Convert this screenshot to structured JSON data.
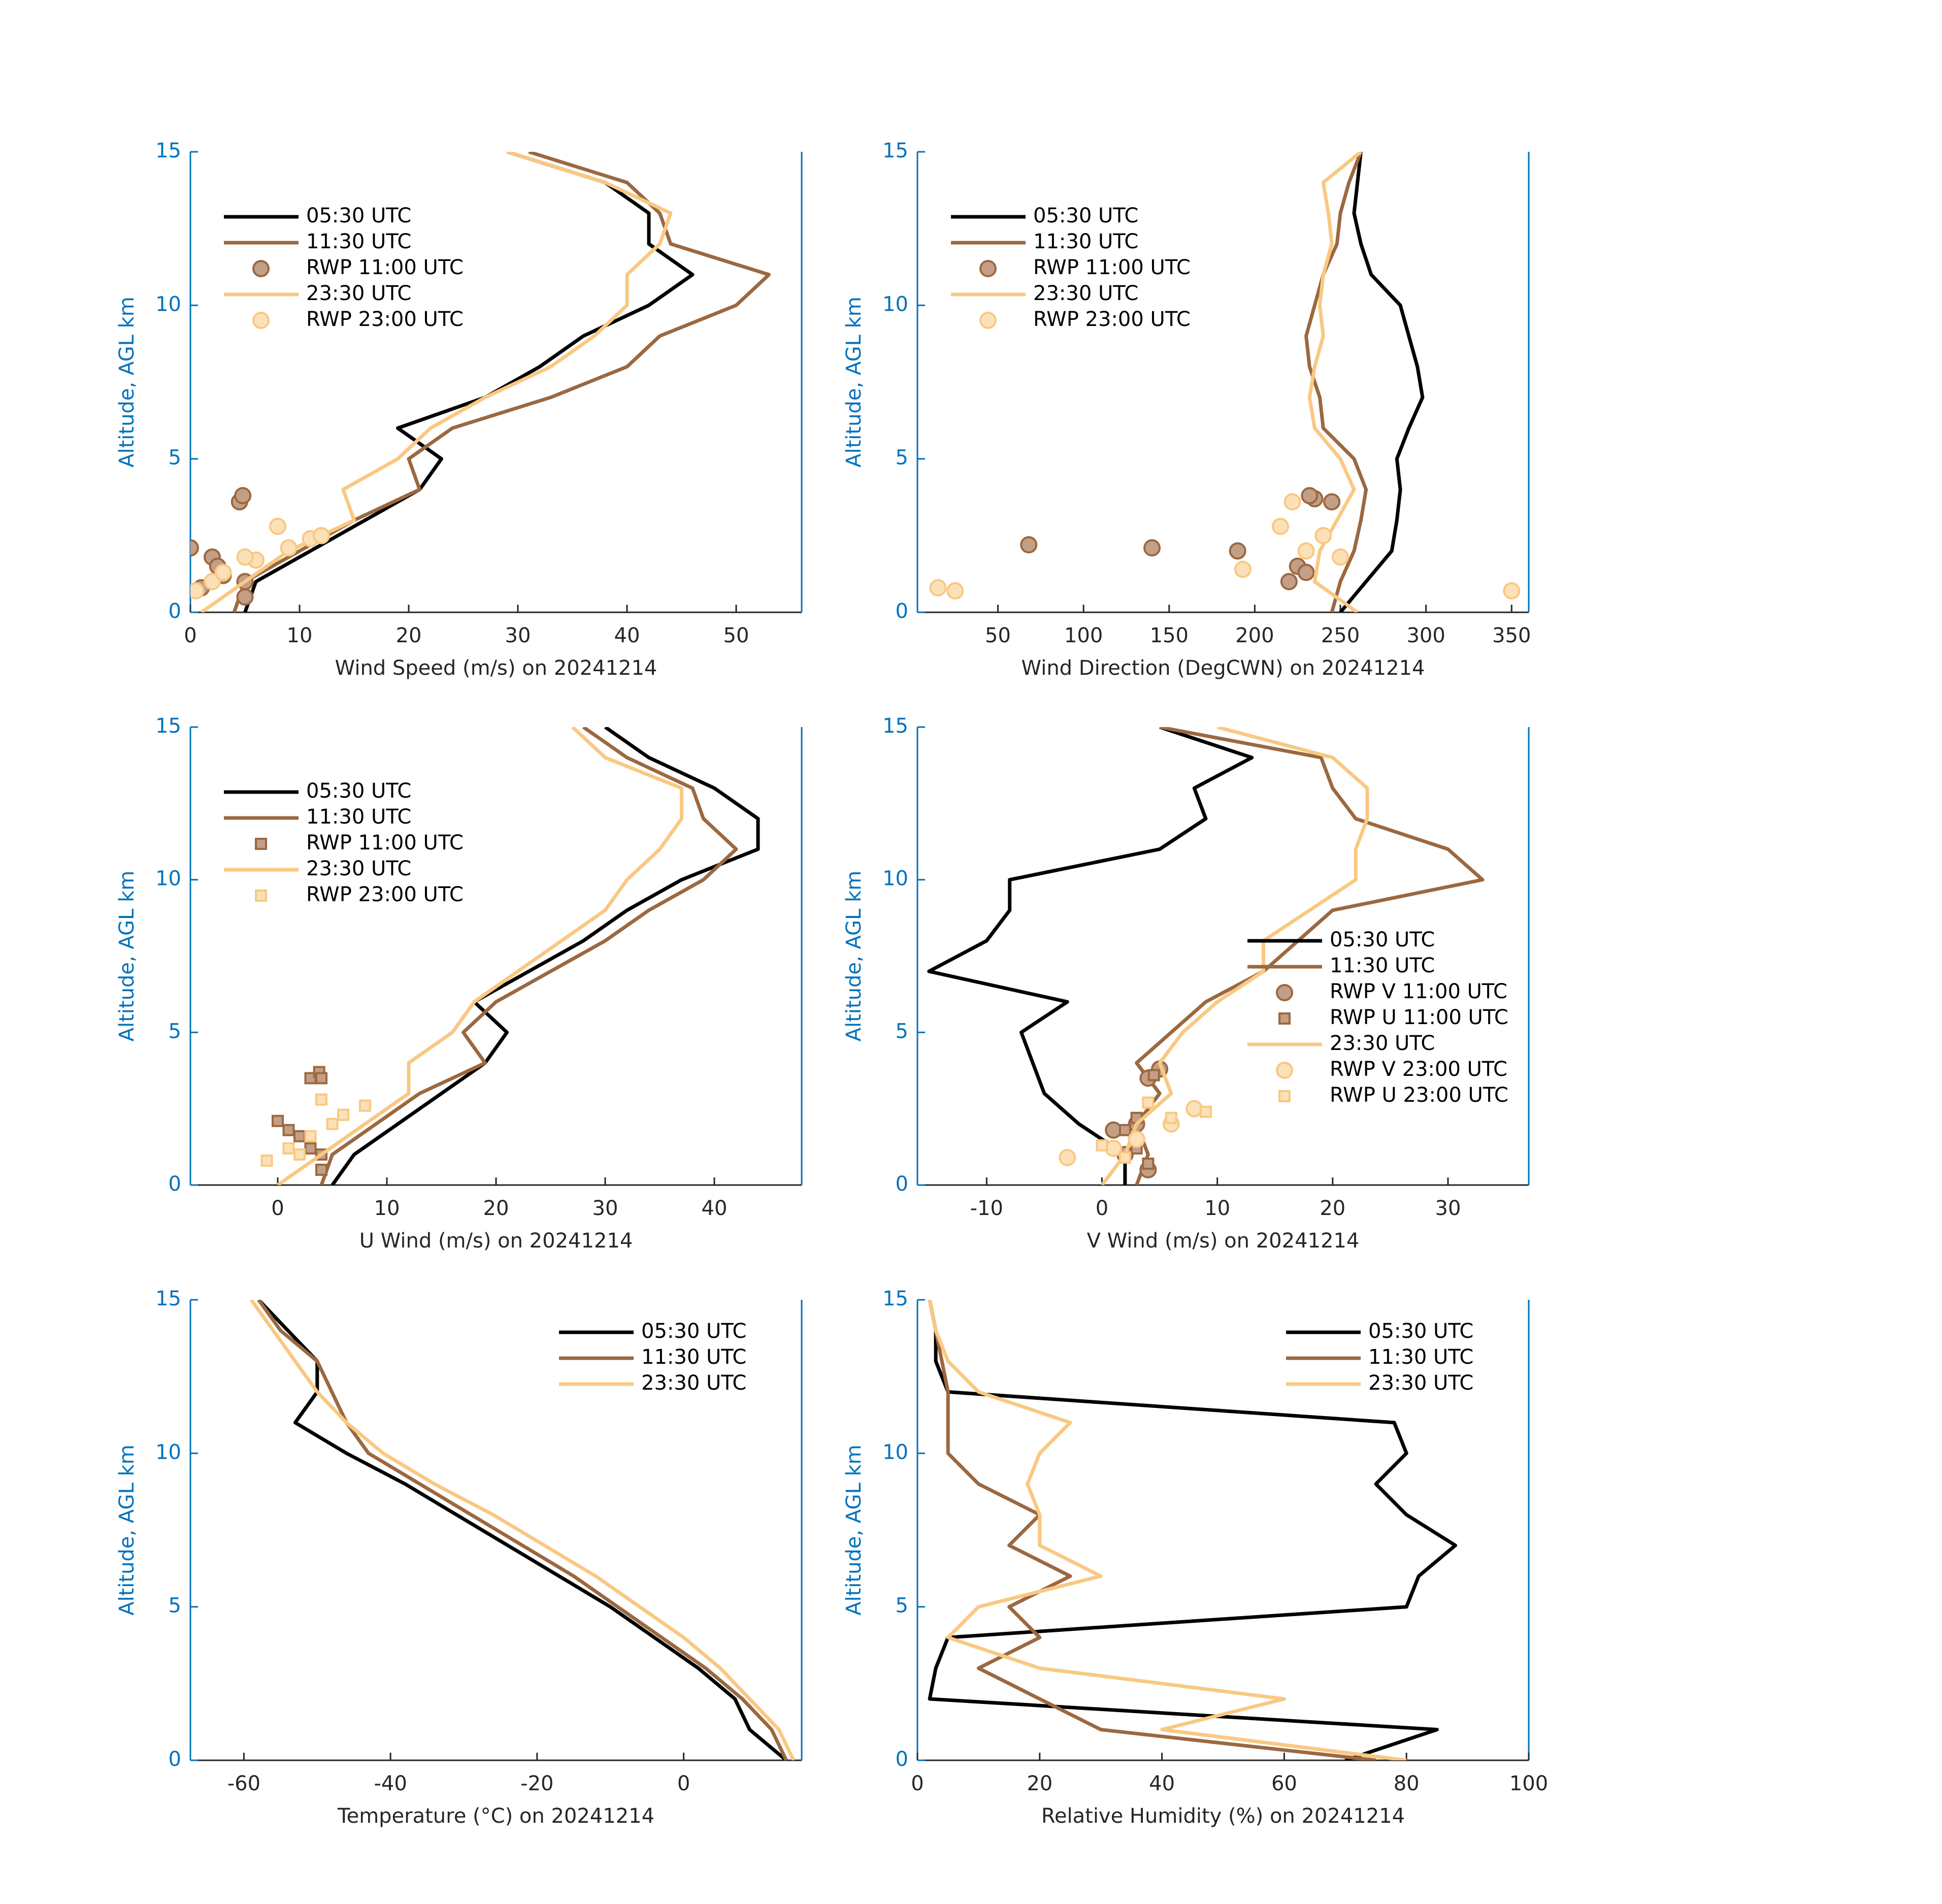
{
  "chart_data": [
    {
      "type": "line",
      "xlabel": "Wind Speed (m/s) on 20241214",
      "ylabel": "Altitude, AGL km",
      "xlim": [
        0,
        56
      ],
      "ylim": [
        0,
        15
      ],
      "xticks": [
        0,
        10,
        20,
        30,
        40,
        50
      ],
      "yticks": [
        0,
        5,
        10,
        15
      ],
      "legend": "upper left",
      "series": [
        {
          "name": "05:30 UTC",
          "type": "line",
          "color": "#000000",
          "x": [
            5,
            6,
            11,
            16,
            21,
            23,
            19,
            27,
            32,
            36,
            42,
            46,
            42,
            42,
            38,
            29
          ],
          "y": [
            0,
            1,
            2,
            3,
            4,
            5,
            6,
            7,
            8,
            9,
            10,
            11,
            12,
            13,
            14,
            15
          ]
        },
        {
          "name": "11:30 UTC",
          "type": "line",
          "color": "#9b6840",
          "x": [
            4,
            5,
            10,
            15,
            21,
            20,
            24,
            33,
            40,
            43,
            50,
            53,
            44,
            43,
            40,
            31
          ],
          "y": [
            0,
            1,
            2,
            3,
            4,
            5,
            6,
            7,
            8,
            9,
            10,
            11,
            12,
            13,
            14,
            15
          ]
        },
        {
          "name": "RWP 11:00 UTC",
          "type": "scatter",
          "marker": "circle",
          "color": "#9b6840",
          "fill": "#c39f86",
          "x": [
            0,
            2,
            2.5,
            5,
            5,
            4.5,
            4.8,
            3,
            1
          ],
          "y": [
            2.1,
            1.8,
            1.5,
            0.5,
            1,
            3.6,
            3.8,
            1.2,
            0.8
          ]
        },
        {
          "name": "23:30 UTC",
          "type": "line",
          "color": "#f9c882",
          "x": [
            1,
            5,
            9,
            15,
            14,
            19,
            22,
            27,
            33,
            37,
            40,
            40,
            43,
            44,
            38,
            29
          ],
          "y": [
            0,
            1,
            2,
            3,
            4,
            5,
            6,
            7,
            8,
            9,
            10,
            11,
            12,
            13,
            14,
            15
          ]
        },
        {
          "name": "RWP 23:00 UTC",
          "type": "scatter",
          "marker": "circle",
          "color": "#f9c882",
          "fill": "#fce1b8",
          "x": [
            0.5,
            2,
            3,
            6,
            8,
            11,
            12,
            9,
            5
          ],
          "y": [
            0.7,
            1,
            1.3,
            1.7,
            2.8,
            2.4,
            2.5,
            2.1,
            1.8
          ]
        }
      ]
    },
    {
      "type": "line",
      "xlabel": "Wind Direction (DegCWN) on 20241214",
      "ylabel": "Altitude, AGL km",
      "xlim": [
        3,
        360
      ],
      "ylim": [
        0,
        15
      ],
      "xticks": [
        50,
        100,
        150,
        200,
        250,
        300,
        350
      ],
      "yticks": [
        0,
        5,
        10,
        15
      ],
      "legend": "upper left",
      "series": [
        {
          "name": "05:30 UTC",
          "type": "line",
          "color": "#000000",
          "x": [
            250,
            265,
            280,
            283,
            285,
            283,
            290,
            298,
            295,
            290,
            285,
            268,
            262,
            258,
            260,
            262
          ],
          "y": [
            0,
            1,
            2,
            3,
            4,
            5,
            6,
            7,
            8,
            9,
            10,
            11,
            12,
            13,
            14,
            15
          ]
        },
        {
          "name": "11:30 UTC",
          "type": "line",
          "color": "#9b6840",
          "x": [
            245,
            250,
            258,
            262,
            265,
            258,
            240,
            238,
            232,
            230,
            235,
            240,
            248,
            250,
            255,
            262
          ],
          "y": [
            0,
            1,
            2,
            3,
            4,
            5,
            6,
            7,
            8,
            9,
            10,
            11,
            12,
            13,
            14,
            15
          ]
        },
        {
          "name": "RWP 11:00 UTC",
          "type": "scatter",
          "marker": "circle",
          "color": "#9b6840",
          "fill": "#c39f86",
          "x": [
            68,
            140,
            190,
            225,
            235,
            232,
            245,
            220,
            230
          ],
          "y": [
            2.2,
            2.1,
            2,
            1.5,
            3.7,
            3.8,
            3.6,
            1,
            1.3
          ]
        },
        {
          "name": "23:30 UTC",
          "type": "line",
          "color": "#f9c882",
          "x": [
            260,
            235,
            238,
            248,
            258,
            250,
            235,
            232,
            235,
            240,
            238,
            240,
            245,
            243,
            240,
            262
          ],
          "y": [
            0,
            1,
            2,
            3,
            4,
            5,
            6,
            7,
            8,
            9,
            10,
            11,
            12,
            13,
            14,
            15
          ]
        },
        {
          "name": "RWP 23:00 UTC",
          "type": "scatter",
          "marker": "circle",
          "color": "#f9c882",
          "fill": "#fce1b8",
          "x": [
            15,
            25,
            193,
            222,
            215,
            240,
            230,
            250,
            350
          ],
          "y": [
            0.8,
            0.7,
            1.4,
            3.6,
            2.8,
            2.5,
            2,
            1.8,
            0.7
          ]
        }
      ]
    },
    {
      "type": "line",
      "xlabel": "U Wind (m/s) on 20241214",
      "ylabel": "Altitude, AGL km",
      "xlim": [
        -8,
        48
      ],
      "ylim": [
        0,
        15
      ],
      "xticks": [
        0,
        10,
        20,
        30,
        40
      ],
      "yticks": [
        0,
        5,
        10,
        15
      ],
      "legend": "upper left",
      "series": [
        {
          "name": "05:30 UTC",
          "type": "line",
          "color": "#000000",
          "x": [
            5,
            7,
            11,
            15,
            19,
            21,
            18,
            23,
            28,
            32,
            37,
            44,
            44,
            40,
            34,
            30
          ],
          "y": [
            0,
            1,
            2,
            3,
            4,
            5,
            6,
            7,
            8,
            9,
            10,
            11,
            12,
            13,
            14,
            15
          ]
        },
        {
          "name": "11:30 UTC",
          "type": "line",
          "color": "#9b6840",
          "x": [
            4,
            5,
            9,
            13,
            19,
            17,
            20,
            25,
            30,
            34,
            39,
            42,
            39,
            38,
            32,
            28
          ],
          "y": [
            0,
            1,
            2,
            3,
            4,
            5,
            6,
            7,
            8,
            9,
            10,
            11,
            12,
            13,
            14,
            15
          ]
        },
        {
          "name": "RWP 11:00 UTC",
          "type": "scatter",
          "marker": "square",
          "color": "#9b6840",
          "fill": "#c39f86",
          "x": [
            0,
            1,
            2,
            3,
            4,
            4,
            3,
            3.8,
            4
          ],
          "y": [
            2.1,
            1.8,
            1.6,
            1.2,
            1,
            0.5,
            3.5,
            3.7,
            3.5
          ]
        },
        {
          "name": "23:30 UTC",
          "type": "line",
          "color": "#f9c882",
          "x": [
            0,
            4,
            8,
            12,
            12,
            16,
            18,
            22,
            26,
            30,
            32,
            35,
            37,
            37,
            30,
            27
          ],
          "y": [
            0,
            1,
            2,
            3,
            4,
            5,
            6,
            7,
            8,
            9,
            10,
            11,
            12,
            13,
            14,
            15
          ]
        },
        {
          "name": "RWP 23:00 UTC",
          "type": "scatter",
          "marker": "square",
          "color": "#f9c882",
          "fill": "#fce1b8",
          "x": [
            -1,
            1,
            3,
            5,
            6,
            8,
            4,
            2
          ],
          "y": [
            0.8,
            1.2,
            1.6,
            2,
            2.3,
            2.6,
            2.8,
            1
          ]
        }
      ]
    },
    {
      "type": "line",
      "xlabel": "V Wind (m/s) on 20241214",
      "ylabel": "Altitude, AGL km",
      "xlim": [
        -16,
        37
      ],
      "ylim": [
        0,
        15
      ],
      "xticks": [
        -10,
        0,
        10,
        20,
        30
      ],
      "yticks": [
        0,
        5,
        10,
        15
      ],
      "legend": "center right",
      "series": [
        {
          "name": "05:30 UTC",
          "type": "line",
          "color": "#000000",
          "x": [
            2,
            2,
            -2,
            -5,
            -6,
            -7,
            -3,
            -15,
            -10,
            -8,
            -8,
            5,
            9,
            8,
            13,
            5
          ],
          "y": [
            0,
            1,
            2,
            3,
            4,
            5,
            6,
            7,
            8,
            9,
            10,
            11,
            12,
            13,
            14,
            15
          ]
        },
        {
          "name": "11:30 UTC",
          "type": "line",
          "color": "#9b6840",
          "x": [
            3,
            4,
            3,
            5,
            3,
            6,
            9,
            14,
            17,
            20,
            33,
            30,
            22,
            20,
            19,
            5
          ],
          "y": [
            0,
            1,
            2,
            3,
            4,
            5,
            6,
            7,
            8,
            9,
            10,
            11,
            12,
            13,
            14,
            15
          ]
        },
        {
          "name": "RWP V 11:00 UTC",
          "type": "scatter",
          "marker": "circle",
          "color": "#9b6840",
          "fill": "#c39f86",
          "x": [
            3,
            2,
            4,
            4,
            5,
            3,
            1
          ],
          "y": [
            1.5,
            1,
            0.5,
            3.5,
            3.8,
            2,
            1.8
          ]
        },
        {
          "name": "RWP U 11:00 UTC",
          "type": "scatter",
          "marker": "square",
          "color": "#9b6840",
          "fill": "#c39f86",
          "x": [
            3,
            4,
            4.5,
            3,
            2
          ],
          "y": [
            1.2,
            0.7,
            3.6,
            2.2,
            1.8
          ]
        },
        {
          "name": "23:30 UTC",
          "type": "line",
          "color": "#f9c882",
          "x": [
            0,
            2,
            3,
            6,
            5,
            7,
            10,
            14,
            14,
            18,
            22,
            22,
            23,
            23,
            20,
            10
          ],
          "y": [
            0,
            1,
            2,
            3,
            4,
            5,
            6,
            7,
            8,
            9,
            10,
            11,
            12,
            13,
            14,
            15
          ]
        },
        {
          "name": "RWP V 23:00 UTC",
          "type": "scatter",
          "marker": "circle",
          "color": "#f9c882",
          "fill": "#fce1b8",
          "x": [
            -3,
            1,
            6,
            8,
            3
          ],
          "y": [
            0.9,
            1.2,
            2,
            2.5,
            1.5
          ]
        },
        {
          "name": "RWP U 23:00 UTC",
          "type": "scatter",
          "marker": "square",
          "color": "#f9c882",
          "fill": "#fce1b8",
          "x": [
            4,
            9,
            6,
            2,
            0
          ],
          "y": [
            2.7,
            2.4,
            2.2,
            0.9,
            1.3
          ]
        }
      ]
    },
    {
      "type": "line",
      "xlabel": "Temperature (°C) on 20241214",
      "ylabel": "Altitude, AGL km",
      "xlim": [
        -67.3,
        16.1
      ],
      "ylim": [
        0,
        15
      ],
      "xticks": [
        -60,
        -40,
        -20,
        0
      ],
      "yticks": [
        0,
        5,
        10,
        15
      ],
      "legend": "upper right",
      "series": [
        {
          "name": "05:30 UTC",
          "type": "line",
          "color": "#000000",
          "x": [
            14,
            9,
            7,
            2,
            -4,
            -10,
            -17,
            -24,
            -31,
            -38,
            -46,
            -53,
            -50,
            -50,
            -54,
            -58
          ],
          "y": [
            0,
            1,
            2,
            3,
            4,
            5,
            6,
            7,
            8,
            9,
            10,
            11,
            12,
            13,
            14,
            15
          ]
        },
        {
          "name": "11:30 UTC",
          "type": "line",
          "color": "#9b6840",
          "x": [
            14,
            12,
            8,
            3,
            -3,
            -9,
            -15,
            -22,
            -29,
            -36,
            -43,
            -46,
            -48,
            -50,
            -55,
            -58
          ],
          "y": [
            0,
            1,
            2,
            3,
            4,
            5,
            6,
            7,
            8,
            9,
            10,
            11,
            12,
            13,
            14,
            15
          ]
        },
        {
          "name": "23:30 UTC",
          "type": "line",
          "color": "#f9c882",
          "x": [
            15,
            13,
            9,
            5,
            0,
            -6,
            -12,
            -19,
            -26,
            -34,
            -41,
            -46,
            -50,
            -53,
            -56,
            -59
          ],
          "y": [
            0,
            1,
            2,
            3,
            4,
            5,
            6,
            7,
            8,
            9,
            10,
            11,
            12,
            13,
            14,
            15
          ]
        }
      ]
    },
    {
      "type": "line",
      "xlabel": "Relative Humidity (%) on 20241214",
      "ylabel": "Altitude, AGL km",
      "xlim": [
        0,
        100
      ],
      "ylim": [
        0,
        15
      ],
      "xticks": [
        0,
        20,
        40,
        60,
        80,
        100
      ],
      "yticks": [
        0,
        5,
        10,
        15
      ],
      "legend": "upper right",
      "series": [
        {
          "name": "05:30 UTC",
          "type": "line",
          "color": "#000000",
          "x": [
            70,
            85,
            2,
            3,
            5,
            80,
            82,
            88,
            80,
            75,
            80,
            78,
            5,
            3,
            3,
            2
          ],
          "y": [
            0,
            1,
            2,
            3,
            4,
            5,
            6,
            7,
            8,
            9,
            10,
            11,
            12,
            13,
            14,
            15
          ]
        },
        {
          "name": "11:30 UTC",
          "type": "line",
          "color": "#9b6840",
          "x": [
            75,
            30,
            20,
            10,
            20,
            15,
            25,
            15,
            20,
            10,
            5,
            5,
            5,
            4,
            3,
            2
          ],
          "y": [
            0,
            1,
            2,
            3,
            4,
            5,
            6,
            7,
            8,
            9,
            10,
            11,
            12,
            13,
            14,
            15
          ]
        },
        {
          "name": "23:30 UTC",
          "type": "line",
          "color": "#f9c882",
          "x": [
            80,
            40,
            60,
            20,
            5,
            10,
            30,
            20,
            20,
            18,
            20,
            25,
            10,
            5,
            3,
            2
          ],
          "y": [
            0,
            1,
            2,
            3,
            4,
            5,
            6,
            7,
            8,
            9,
            10,
            11,
            12,
            13,
            14,
            15
          ]
        }
      ]
    }
  ]
}
